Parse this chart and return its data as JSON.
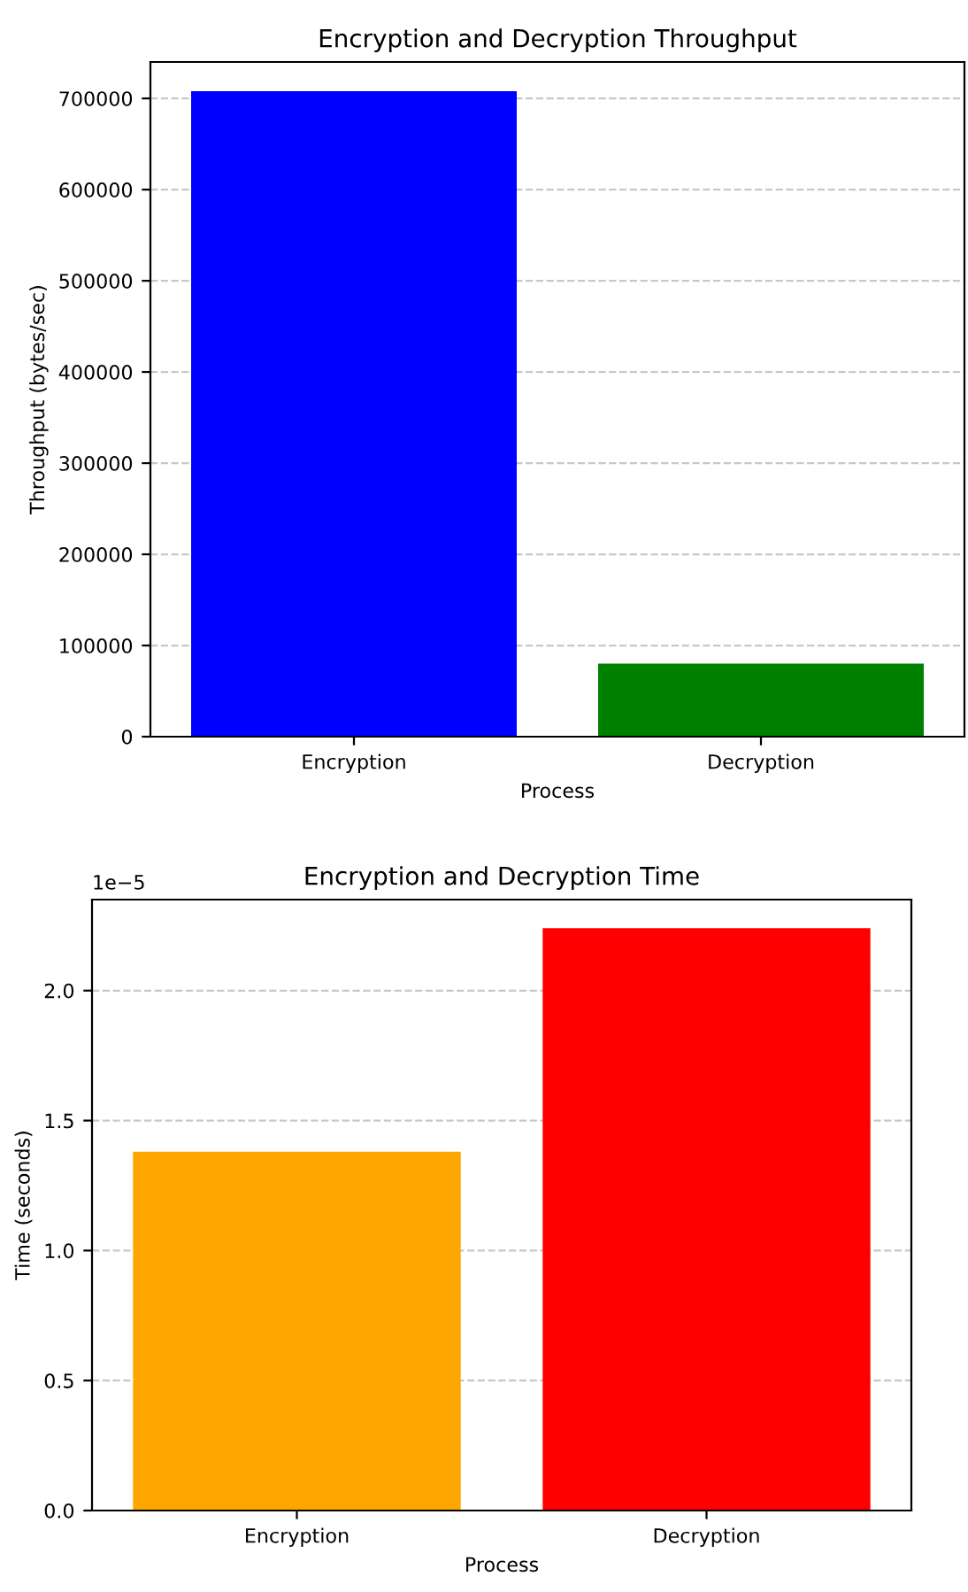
{
  "chart_data": [
    {
      "type": "bar",
      "title": "Encryption and Decryption Throughput",
      "xlabel": "Process",
      "ylabel": "Throughput (bytes/sec)",
      "categories": [
        "Encryption",
        "Decryption"
      ],
      "values": [
        708000,
        80000
      ],
      "colors": [
        "#0000ff",
        "#008000"
      ],
      "ylim": [
        0,
        740000
      ],
      "yticks": [
        0,
        100000,
        200000,
        300000,
        400000,
        500000,
        600000,
        700000
      ],
      "grid": "y"
    },
    {
      "type": "bar",
      "title": "Encryption and Decryption Time",
      "xlabel": "Process",
      "ylabel": "Time (seconds)",
      "categories": [
        "Encryption",
        "Decryption"
      ],
      "values": [
        1.38,
        2.24
      ],
      "colors": [
        "#ffa500",
        "#ff0000"
      ],
      "ylim": [
        0,
        2.35
      ],
      "yticks": [
        {
          "value": 0,
          "label": "0.0"
        },
        {
          "value": 0.5,
          "label": "0.5"
        },
        {
          "value": 1,
          "label": "1.0"
        },
        {
          "value": 1.5,
          "label": "1.5"
        },
        {
          "value": 2,
          "label": "2.0"
        }
      ],
      "grid": "y",
      "annotations": [
        "1e−5"
      ]
    }
  ]
}
